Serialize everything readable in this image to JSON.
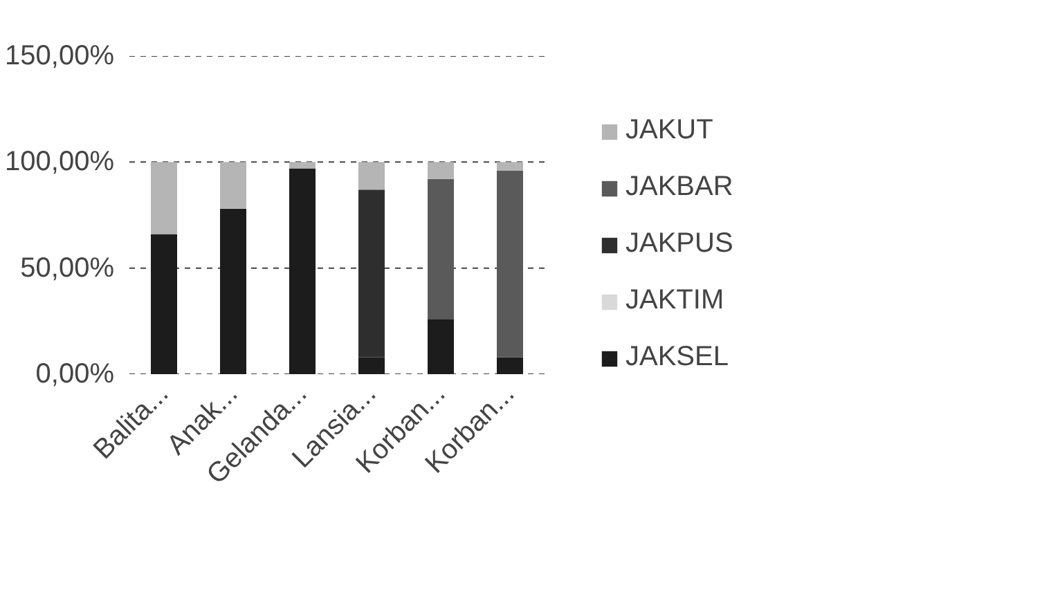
{
  "chart_data": {
    "type": "bar",
    "stacked": true,
    "categories": [
      "Balita...",
      "Anak...",
      "Gelanda...",
      "Lansia...",
      "Korban...",
      "Korban..."
    ],
    "series": [
      {
        "name": "JAKSEL",
        "color": "#1c1c1c",
        "values": [
          66,
          78,
          97,
          8,
          26,
          8
        ]
      },
      {
        "name": "JAKTIM",
        "color": "#d9d9d9",
        "values": [
          0,
          0,
          0,
          0,
          0,
          0
        ]
      },
      {
        "name": "JAKPUS",
        "color": "#2e2e2e",
        "values": [
          0,
          0,
          0,
          79,
          0,
          0
        ]
      },
      {
        "name": "JAKBAR",
        "color": "#5a5a5a",
        "values": [
          0,
          0,
          0,
          0,
          66,
          88
        ]
      },
      {
        "name": "JAKUT",
        "color": "#b5b5b5",
        "values": [
          34,
          22,
          3,
          13,
          8,
          4
        ]
      }
    ],
    "ylim": [
      0,
      150
    ],
    "yticks": [
      {
        "value": 0,
        "label": "0,00%"
      },
      {
        "value": 50,
        "label": "50,00%"
      },
      {
        "value": 100,
        "label": "100,00%"
      },
      {
        "value": 150,
        "label": "150,00%"
      }
    ],
    "grid": "y",
    "legend": "right"
  }
}
